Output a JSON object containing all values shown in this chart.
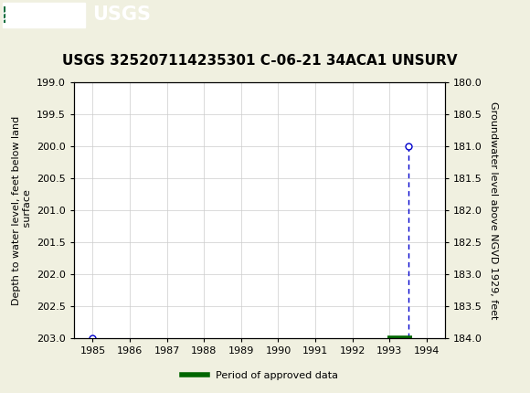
{
  "title": "USGS 325207114235301 C-06-21 34ACA1 UNSURV",
  "title_fontsize": 11,
  "background_color": "#f0f0e0",
  "plot_bg_color": "#ffffff",
  "header_color": "#1a6b3c",
  "left_ylabel": "Depth to water level, feet below land\n surface",
  "right_ylabel": "Groundwater level above NGVD 1929, feet",
  "xlim": [
    1984.5,
    1994.5
  ],
  "ylim_left_top": 199.0,
  "ylim_left_bottom": 203.0,
  "yticks_left": [
    199.0,
    199.5,
    200.0,
    200.5,
    201.0,
    201.5,
    202.0,
    202.5,
    203.0
  ],
  "yticks_right": [
    184.0,
    183.5,
    183.0,
    182.5,
    182.0,
    181.5,
    181.0,
    180.5,
    180.0
  ],
  "xticks": [
    1985,
    1986,
    1987,
    1988,
    1989,
    1990,
    1991,
    1992,
    1993,
    1994
  ],
  "blue_point_1_x": 1985.0,
  "blue_point_1_y": 203.0,
  "blue_point_2_x": 1993.5,
  "blue_point_2_y": 200.0,
  "blue_point_3_x": 1993.5,
  "blue_point_3_y": 203.0,
  "green_x_start": 1992.95,
  "green_x_end": 1993.6,
  "green_y": 203.0,
  "blue_color": "#0000cc",
  "green_color": "#006600",
  "legend_label": "Period of approved data",
  "usgs_banner_color": "#1a7040",
  "grid_color": "#cccccc"
}
